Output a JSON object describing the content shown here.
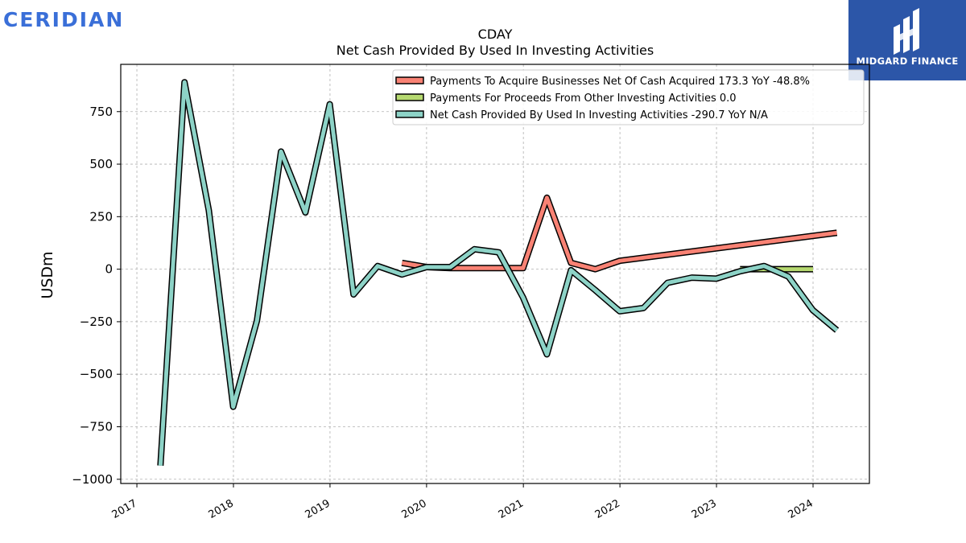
{
  "brand": {
    "left_name": "CERIDIAN",
    "right_name": "MIDGARD FINANCE",
    "right_logo_icon": "midgard-finance-logo-icon",
    "left_color": "#3a6fd8",
    "right_bg": "#2c56a8"
  },
  "chart_data": {
    "type": "line",
    "title": "CDAY",
    "subtitle": "Net Cash Provided By Used In Investing Activities",
    "xlabel": "",
    "ylabel": "USDm",
    "xlim": [
      "2016-11-01",
      "2024-08-01"
    ],
    "ylim": [
      -1020,
      975
    ],
    "x_ticks": [
      "2017",
      "2018",
      "2019",
      "2020",
      "2021",
      "2022",
      "2023",
      "2024"
    ],
    "y_ticks": [
      -1000,
      -750,
      -500,
      -250,
      0,
      250,
      500,
      750
    ],
    "y_tick_labels": [
      "−1000",
      "−750",
      "−500",
      "−250",
      "0",
      "250",
      "500",
      "750"
    ],
    "grid": true,
    "legend_position": "top-right",
    "series": [
      {
        "name": "Payments To Acquire Businesses Net Of Cash Acquired",
        "legend_label": "Payments To Acquire Businesses Net Of Cash Acquired  173.3 YoY -48.8%",
        "color": "#f98274",
        "x": [
          "2019-09-30",
          "2019-12-31",
          "2020-03-31",
          "2020-06-30",
          "2020-09-30",
          "2020-12-31",
          "2021-03-31",
          "2021-06-30",
          "2021-09-30",
          "2021-12-31",
          "2024-03-31"
        ],
        "y": [
          30,
          10,
          5,
          5,
          5,
          5,
          340,
          30,
          0,
          40,
          173.3
        ]
      },
      {
        "name": "Payments For Proceeds From Other Investing Activities",
        "legend_label": "Payments For Proceeds From Other Investing Activities  0.0",
        "color": "#b6d970",
        "x": [
          "2023-03-31",
          "2024-01-01"
        ],
        "y": [
          0,
          0
        ]
      },
      {
        "name": "Net Cash Provided By Used In Investing Activities",
        "legend_label": "Net Cash Provided By Used In Investing Activities  -290.7 YoY N/A",
        "color": "#8dd3c7",
        "x": [
          "2017-03-31",
          "2017-06-30",
          "2017-09-30",
          "2017-12-31",
          "2018-03-31",
          "2018-06-30",
          "2018-09-30",
          "2018-12-31",
          "2019-03-31",
          "2019-06-30",
          "2019-09-30",
          "2019-12-31",
          "2020-03-31",
          "2020-06-30",
          "2020-09-30",
          "2020-12-31",
          "2021-03-31",
          "2021-06-30",
          "2021-09-30",
          "2021-12-31",
          "2022-03-31",
          "2022-06-30",
          "2022-09-30",
          "2022-12-31",
          "2023-03-31",
          "2023-06-30",
          "2023-09-30",
          "2023-12-31",
          "2024-03-31"
        ],
        "y": [
          -935,
          890,
          280,
          -655,
          -245,
          560,
          270,
          785,
          -120,
          15,
          -25,
          10,
          10,
          95,
          80,
          -135,
          -405,
          -5,
          -100,
          -200,
          -185,
          -65,
          -40,
          -45,
          -10,
          15,
          -35,
          -195,
          -290.7
        ]
      }
    ]
  }
}
